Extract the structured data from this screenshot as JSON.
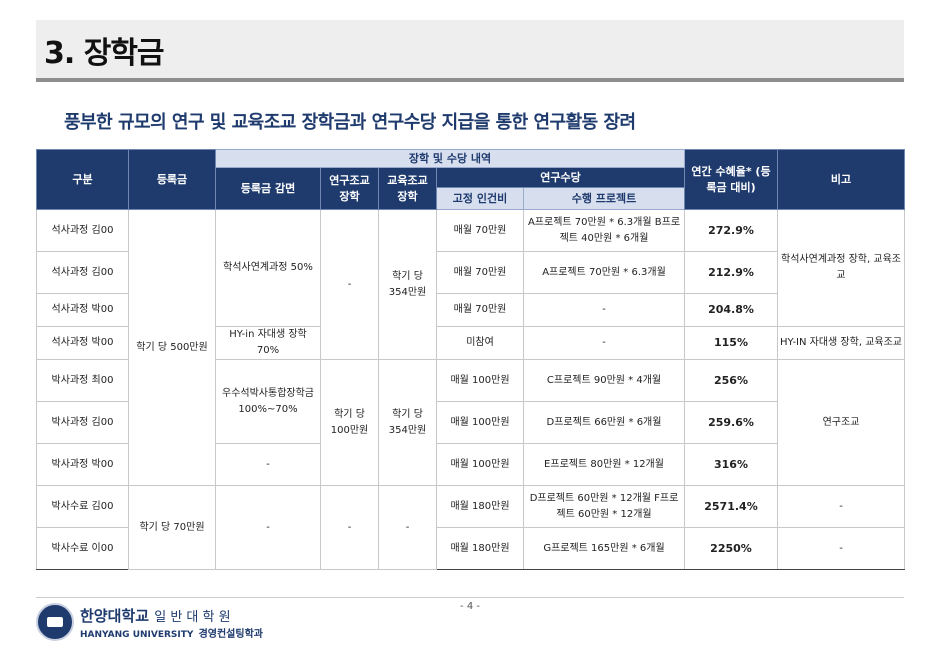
{
  "title": "3. 장학금",
  "subtitle": "풍부한 규모의 연구 및 교육조교 장학금과 연구수당 지급을 통한 연구활동 장려",
  "table": {
    "headers": {
      "category": "구분",
      "tuition": "등록금",
      "details": "장학 및 수당 내역",
      "tuition_reduction": "등록금 감면",
      "research_assistant": "연구조교 장학",
      "teaching_assistant": "교육조교 장학",
      "research_allowance": "연구수당",
      "fixed_labor": "고정 인건비",
      "project": "수행 프로젝트",
      "annual_benefit": "연간 수혜율* (등록금 대비)",
      "note": "비고"
    },
    "rows": [
      {
        "name": "석사과정 김00",
        "fixed": "매월 70만원",
        "project": "A프로젝트 70만원 * 6.3개월 B프로젝트 40만원 * 6개월",
        "rate": "272.9%"
      },
      {
        "name": "석사과정 김00",
        "fixed": "매월 70만원",
        "project": "A프로젝트 70만원 * 6.3개월",
        "rate": "212.9%"
      },
      {
        "name": "석사과정 박00",
        "fixed": "매월 70만원",
        "project": "-",
        "rate": "204.8%"
      },
      {
        "name": "석사과정 박00",
        "fixed": "미참여",
        "project": "-",
        "rate": "115%"
      },
      {
        "name": "박사과정 최00",
        "fixed": "매월 100만원",
        "project": "C프로젝트 90만원 * 4개월",
        "rate": "256%"
      },
      {
        "name": "박사과정 김00",
        "fixed": "매월 100만원",
        "project": "D프로젝트 66만원 * 6개월",
        "rate": "259.6%"
      },
      {
        "name": "박사과정 박00",
        "fixed": "매월 100만원",
        "project": "E프로젝트 80만원 * 12개월",
        "rate": "316%"
      },
      {
        "name": "박사수료 김00",
        "fixed": "매월 180만원",
        "project": "D프로젝트 60만원 * 12개월 F프로젝트 60만원 * 12개월",
        "rate": "2571.4%"
      },
      {
        "name": "박사수료 이00",
        "fixed": "매월 180만원",
        "project": "G프로젝트 165만원 * 6개월",
        "rate": "2250%"
      }
    ],
    "merged": {
      "tuition_500": "학기 당 500만원",
      "tuition_70": "학기 당 70만원",
      "reduction_ms": "학석사연계과정 50%",
      "reduction_hyin": "HY-in 자대생 장학 70%",
      "reduction_phd": "우수석박사통합장학금 100%~70%",
      "reduction_dash1": "-",
      "reduction_dash2": "-",
      "ra_dash1": "-",
      "ra_phd": "학기 당 100만원",
      "ra_dash2": "-",
      "ta_ms": "학기 당 354만원",
      "ta_phd": "학기 당 354만원",
      "ta_dash": "-",
      "note_ms": "학석사연계과정 장학, 교육조교",
      "note_hyin": "HY-IN 자대생 장학, 교육조교",
      "note_phd": "연구조교",
      "note_dash1": "-",
      "note_dash2": "-"
    }
  },
  "footer": {
    "page": "- 4 -",
    "university": "한양대학교",
    "school": "일 반 대 학 원",
    "university_en": "HANYANG UNIVERSITY",
    "department": "경영컨설팅학과"
  },
  "colors": {
    "header_navy": "#1f3b6e",
    "subheader_light": "#d7dfef",
    "title_bg": "#eeeeee"
  }
}
